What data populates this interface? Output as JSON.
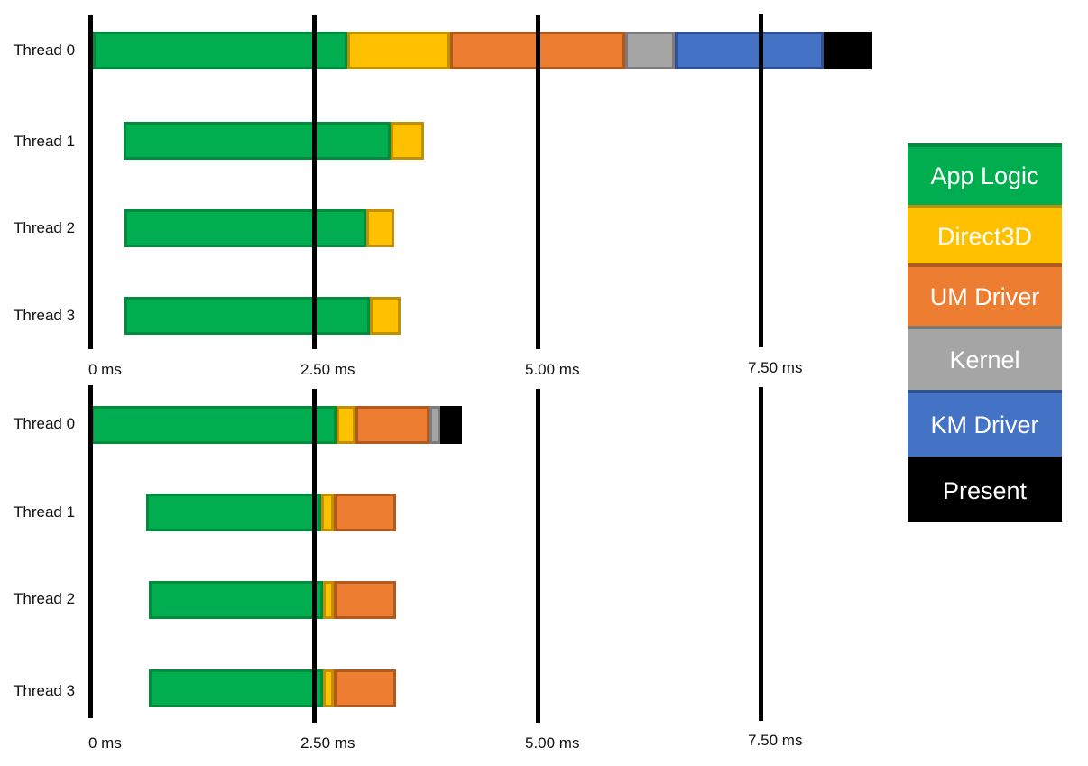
{
  "colors": {
    "app_logic": {
      "fill": "#00ad4f",
      "border": "#008c3f"
    },
    "direct3d": {
      "fill": "#ffc000",
      "border": "#bf9000"
    },
    "um_driver": {
      "fill": "#ed7d31",
      "border": "#ae5a21"
    },
    "kernel": {
      "fill": "#a5a5a5",
      "border": "#7b7b7b"
    },
    "km_driver": {
      "fill": "#4472c4",
      "border": "#2f528f"
    },
    "present": {
      "fill": "#000000",
      "border": "#000000"
    }
  },
  "legend": [
    {
      "key": "app_logic",
      "label": "App Logic"
    },
    {
      "key": "direct3d",
      "label": "Direct3D"
    },
    {
      "key": "um_driver",
      "label": "UM Driver"
    },
    {
      "key": "kernel",
      "label": "Kernel"
    },
    {
      "key": "km_driver",
      "label": "KM Driver"
    },
    {
      "key": "present",
      "label": "Present"
    }
  ],
  "panels": [
    {
      "ticks": [
        "0 ms",
        "2.50 ms",
        "5.00 ms",
        "7.50 ms"
      ],
      "threads": [
        "Thread 0",
        "Thread 1",
        "Thread 2",
        "Thread 3"
      ]
    },
    {
      "ticks": [
        "0 ms",
        "2.50 ms",
        "5.00 ms",
        "7.50 ms"
      ],
      "threads": [
        "Thread 0",
        "Thread 1",
        "Thread 2",
        "Thread 3"
      ]
    }
  ],
  "chart_data": [
    {
      "type": "bar",
      "subtype": "horizontal-stacked-timeline",
      "title": "",
      "xlabel": "",
      "ylabel": "",
      "x_unit": "ms",
      "xlim": [
        0,
        8.75
      ],
      "x_ticks": [
        0,
        2.5,
        5.0,
        7.5
      ],
      "x_tick_labels": [
        "0 ms",
        "2.50 ms",
        "5.00 ms",
        "7.50 ms"
      ],
      "grid": "vertical lines at ticks",
      "legend_position": "right",
      "categories": [
        "Thread 0",
        "Thread 1",
        "Thread 2",
        "Thread 3"
      ],
      "series": [
        {
          "name": "Thread 0",
          "segments": [
            {
              "label": "App Logic",
              "start": 0.03,
              "end": 2.87
            },
            {
              "label": "Direct3D",
              "start": 2.87,
              "end": 4.02
            },
            {
              "label": "UM Driver",
              "start": 4.02,
              "end": 5.98
            },
            {
              "label": "Kernel",
              "start": 5.98,
              "end": 6.53
            },
            {
              "label": "KM Driver",
              "start": 6.53,
              "end": 8.2
            },
            {
              "label": "Present",
              "start": 8.2,
              "end": 8.74
            }
          ]
        },
        {
          "name": "Thread 1",
          "segments": [
            {
              "label": "App Logic",
              "start": 0.37,
              "end": 3.36
            },
            {
              "label": "Direct3D",
              "start": 3.36,
              "end": 3.73
            }
          ]
        },
        {
          "name": "Thread 2",
          "segments": [
            {
              "label": "App Logic",
              "start": 0.38,
              "end": 3.08
            },
            {
              "label": "Direct3D",
              "start": 3.08,
              "end": 3.4
            }
          ]
        },
        {
          "name": "Thread 3",
          "segments": [
            {
              "label": "App Logic",
              "start": 0.38,
              "end": 3.13
            },
            {
              "label": "Direct3D",
              "start": 3.13,
              "end": 3.47
            }
          ]
        }
      ]
    },
    {
      "type": "bar",
      "subtype": "horizontal-stacked-timeline",
      "title": "",
      "xlabel": "",
      "ylabel": "",
      "x_unit": "ms",
      "xlim": [
        0,
        8.75
      ],
      "x_ticks": [
        0,
        2.5,
        5.0,
        7.5
      ],
      "x_tick_labels": [
        "0 ms",
        "2.50 ms",
        "5.00 ms",
        "7.50 ms"
      ],
      "grid": "vertical lines at ticks",
      "legend_position": "right",
      "categories": [
        "Thread 0",
        "Thread 1",
        "Thread 2",
        "Thread 3"
      ],
      "series": [
        {
          "name": "Thread 0",
          "segments": [
            {
              "label": "App Logic",
              "start": 0.01,
              "end": 2.75
            },
            {
              "label": "Direct3D",
              "start": 2.75,
              "end": 2.96
            },
            {
              "label": "UM Driver",
              "start": 2.96,
              "end": 3.79
            },
            {
              "label": "Kernel",
              "start": 3.79,
              "end": 3.91
            },
            {
              "label": "Present",
              "start": 3.91,
              "end": 4.15
            }
          ]
        },
        {
          "name": "Thread 1",
          "segments": [
            {
              "label": "App Logic",
              "start": 0.63,
              "end": 2.58
            },
            {
              "label": "Direct3D",
              "start": 2.58,
              "end": 2.72
            },
            {
              "label": "UM Driver",
              "start": 2.72,
              "end": 3.42
            }
          ]
        },
        {
          "name": "Thread 2",
          "segments": [
            {
              "label": "App Logic",
              "start": 0.66,
              "end": 2.6
            },
            {
              "label": "Direct3D",
              "start": 2.6,
              "end": 2.72
            },
            {
              "label": "UM Driver",
              "start": 2.72,
              "end": 3.42
            }
          ]
        },
        {
          "name": "Thread 3",
          "segments": [
            {
              "label": "App Logic",
              "start": 0.66,
              "end": 2.6
            },
            {
              "label": "Direct3D",
              "start": 2.6,
              "end": 2.72
            },
            {
              "label": "UM Driver",
              "start": 2.72,
              "end": 3.42
            }
          ]
        }
      ]
    }
  ]
}
